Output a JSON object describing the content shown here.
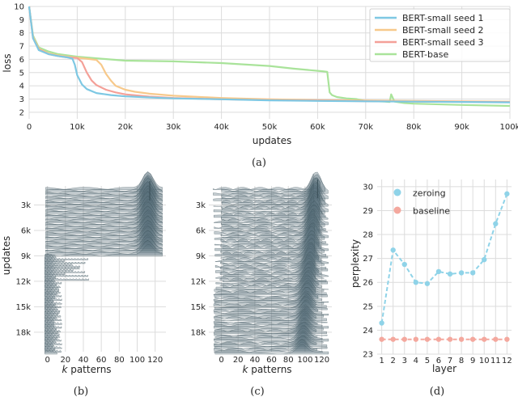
{
  "chart_data": [
    {
      "id": "a",
      "type": "line",
      "caption": "(a)",
      "xlabel": "updates",
      "ylabel": "loss",
      "xlim": [
        0,
        100000
      ],
      "ylim": [
        1.5,
        10
      ],
      "xticks": [
        0,
        10000,
        20000,
        30000,
        40000,
        50000,
        60000,
        70000,
        80000,
        90000,
        100000
      ],
      "xtick_labels": [
        "0",
        "10k",
        "20k",
        "30k",
        "40k",
        "50k",
        "60k",
        "70k",
        "80k",
        "90k",
        "100k"
      ],
      "yticks": [
        2,
        3,
        4,
        5,
        6,
        7,
        8,
        9,
        10
      ],
      "ytick_labels": [
        "2",
        "3",
        "4",
        "5",
        "6",
        "7",
        "8",
        "9",
        "10"
      ],
      "legend_position": "top-right",
      "series": [
        {
          "name": "BERT-small seed 1",
          "color": "#7ec8e3",
          "x": [
            0,
            800,
            2000,
            4000,
            6000,
            8000,
            9000,
            9500,
            10000,
            11000,
            12000,
            14000,
            17000,
            20000,
            25000,
            30000,
            40000,
            50000,
            60000,
            70000,
            80000,
            90000,
            100000
          ],
          "y": [
            10,
            7.6,
            6.7,
            6.4,
            6.25,
            6.15,
            6.05,
            5.6,
            4.8,
            4.1,
            3.75,
            3.45,
            3.3,
            3.2,
            3.12,
            3.05,
            2.98,
            2.9,
            2.86,
            2.83,
            2.8,
            2.78,
            2.75
          ]
        },
        {
          "name": "BERT-small seed 2",
          "color": "#f7c98b",
          "x": [
            0,
            800,
            2000,
            4000,
            6000,
            8000,
            10000,
            12000,
            14000,
            15000,
            16000,
            17000,
            18000,
            20000,
            22000,
            25000,
            30000,
            40000,
            50000,
            60000,
            70000,
            80000,
            90000,
            100000
          ],
          "y": [
            10,
            7.7,
            6.8,
            6.45,
            6.3,
            6.2,
            6.12,
            6.05,
            5.95,
            5.6,
            4.9,
            4.4,
            4.0,
            3.7,
            3.55,
            3.4,
            3.25,
            3.08,
            2.98,
            2.92,
            2.88,
            2.85,
            2.82,
            2.8
          ]
        },
        {
          "name": "BERT-small seed 3",
          "color": "#f4a098",
          "x": [
            0,
            800,
            2000,
            4000,
            6000,
            8000,
            10000,
            11000,
            12000,
            13000,
            14000,
            16000,
            18000,
            20000,
            25000,
            30000,
            40000,
            50000,
            60000,
            70000,
            80000,
            90000,
            100000
          ],
          "y": [
            10,
            7.6,
            6.75,
            6.4,
            6.25,
            6.15,
            6.1,
            5.8,
            5.0,
            4.4,
            4.05,
            3.7,
            3.5,
            3.35,
            3.18,
            3.08,
            2.98,
            2.92,
            2.88,
            2.84,
            2.81,
            2.79,
            2.77
          ]
        },
        {
          "name": "BERT-base",
          "color": "#a9e39a",
          "x": [
            0,
            800,
            2000,
            4000,
            6000,
            8000,
            10000,
            15000,
            20000,
            30000,
            40000,
            50000,
            55000,
            58000,
            61000,
            62000,
            62500,
            63000,
            64000,
            66000,
            68000,
            70000,
            74000,
            75000,
            75300,
            76000,
            78000,
            80000,
            90000,
            100000
          ],
          "y": [
            10,
            7.8,
            6.9,
            6.6,
            6.4,
            6.3,
            6.2,
            6.05,
            5.9,
            5.85,
            5.72,
            5.5,
            5.3,
            5.2,
            5.1,
            5.05,
            3.5,
            3.3,
            3.15,
            3.05,
            3.0,
            2.85,
            2.8,
            2.78,
            3.35,
            2.8,
            2.7,
            2.65,
            2.55,
            2.48
          ]
        }
      ]
    },
    {
      "id": "b",
      "type": "ridgeline",
      "caption": "(b)",
      "xlabel": "k patterns",
      "xlabel_italic_part": "k",
      "xlabel_rest": " patterns",
      "ylabel": "updates",
      "xticks": [
        0,
        20,
        40,
        60,
        80,
        100,
        120
      ],
      "xtick_labels": [
        "0",
        "20",
        "40",
        "60",
        "80",
        "100",
        "120"
      ],
      "yticks": [
        3000,
        6000,
        9000,
        12000,
        15000,
        18000
      ],
      "ytick_labels": [
        "3k",
        "6k",
        "9k",
        "12k",
        "15k",
        "18k"
      ]
    },
    {
      "id": "c",
      "type": "ridgeline",
      "caption": "(c)",
      "xlabel": "k patterns",
      "xlabel_italic_part": "k",
      "xlabel_rest": " patterns",
      "xticks": [
        0,
        20,
        40,
        60,
        80,
        100,
        120
      ],
      "xtick_labels": [
        "0",
        "20",
        "40",
        "60",
        "80",
        "100",
        "120"
      ],
      "yticks": [
        3000,
        6000,
        9000,
        12000,
        15000,
        18000
      ],
      "ytick_labels": [
        "3k",
        "6k",
        "9k",
        "12k",
        "15k",
        "18k"
      ]
    },
    {
      "id": "d",
      "type": "scatter",
      "caption": "(d)",
      "xlabel": "layer",
      "ylabel": "perplexity",
      "xlim": [
        0.6,
        12.4
      ],
      "ylim": [
        23,
        30.3
      ],
      "xticks": [
        1,
        2,
        3,
        4,
        5,
        6,
        7,
        8,
        9,
        10,
        11,
        12
      ],
      "xtick_labels": [
        "1",
        "2",
        "3",
        "4",
        "5",
        "6",
        "7",
        "8",
        "9",
        "10",
        "11",
        "12"
      ],
      "yticks": [
        23,
        24,
        25,
        26,
        27,
        28,
        29,
        30
      ],
      "ytick_labels": [
        "23",
        "24",
        "25",
        "26",
        "27",
        "28",
        "29",
        "30"
      ],
      "legend_position": "top-left",
      "series": [
        {
          "name": "zeroing",
          "color": "#8fd3e8",
          "x": [
            1,
            2,
            3,
            4,
            5,
            6,
            7,
            8,
            9,
            10,
            11,
            12
          ],
          "y": [
            24.3,
            27.35,
            26.75,
            26.0,
            25.95,
            26.45,
            26.35,
            26.4,
            26.4,
            26.95,
            28.45,
            29.7
          ]
        },
        {
          "name": "baseline",
          "color": "#f4a89e",
          "x": [
            1,
            2,
            3,
            4,
            5,
            6,
            7,
            8,
            9,
            10,
            11,
            12
          ],
          "y": [
            23.62,
            23.62,
            23.62,
            23.62,
            23.62,
            23.62,
            23.62,
            23.62,
            23.62,
            23.62,
            23.62,
            23.62
          ]
        }
      ]
    }
  ]
}
